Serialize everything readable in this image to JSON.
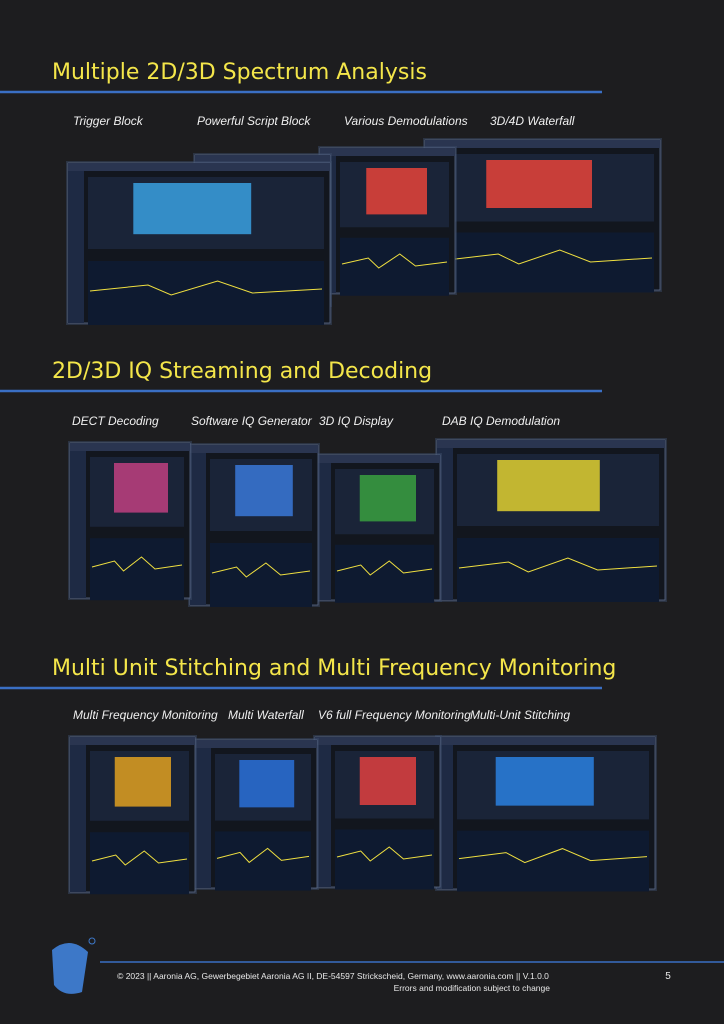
{
  "sections": [
    {
      "title": "Multiple 2D/3D Spectrum Analysis",
      "captions": [
        "Trigger Block",
        "Powerful Script Block",
        "Various Demodulations",
        "3D/4D Waterfall"
      ]
    },
    {
      "title": "2D/3D IQ Streaming and Decoding",
      "captions": [
        "DECT Decoding",
        "Software IQ Generator",
        "3D IQ Display",
        "DAB IQ Demodulation"
      ]
    },
    {
      "title": "Multi Unit Stitching  and Multi Frequency Monitoring",
      "captions": [
        "Multi Frequency Monitoring",
        "Multi Waterfall",
        "V6 full Frequency Monitoring",
        "Multi-Unit Stitching"
      ]
    }
  ],
  "footer": {
    "copyright": "© 2023 || Aaronia AG, Gewerbegebiet Aaronia AG II, DE-54597 Strickscheid, Germany, www.aaronia.com || V.1.0.0",
    "disclaimer": "Errors and modification subject to change",
    "page_number": "5"
  }
}
